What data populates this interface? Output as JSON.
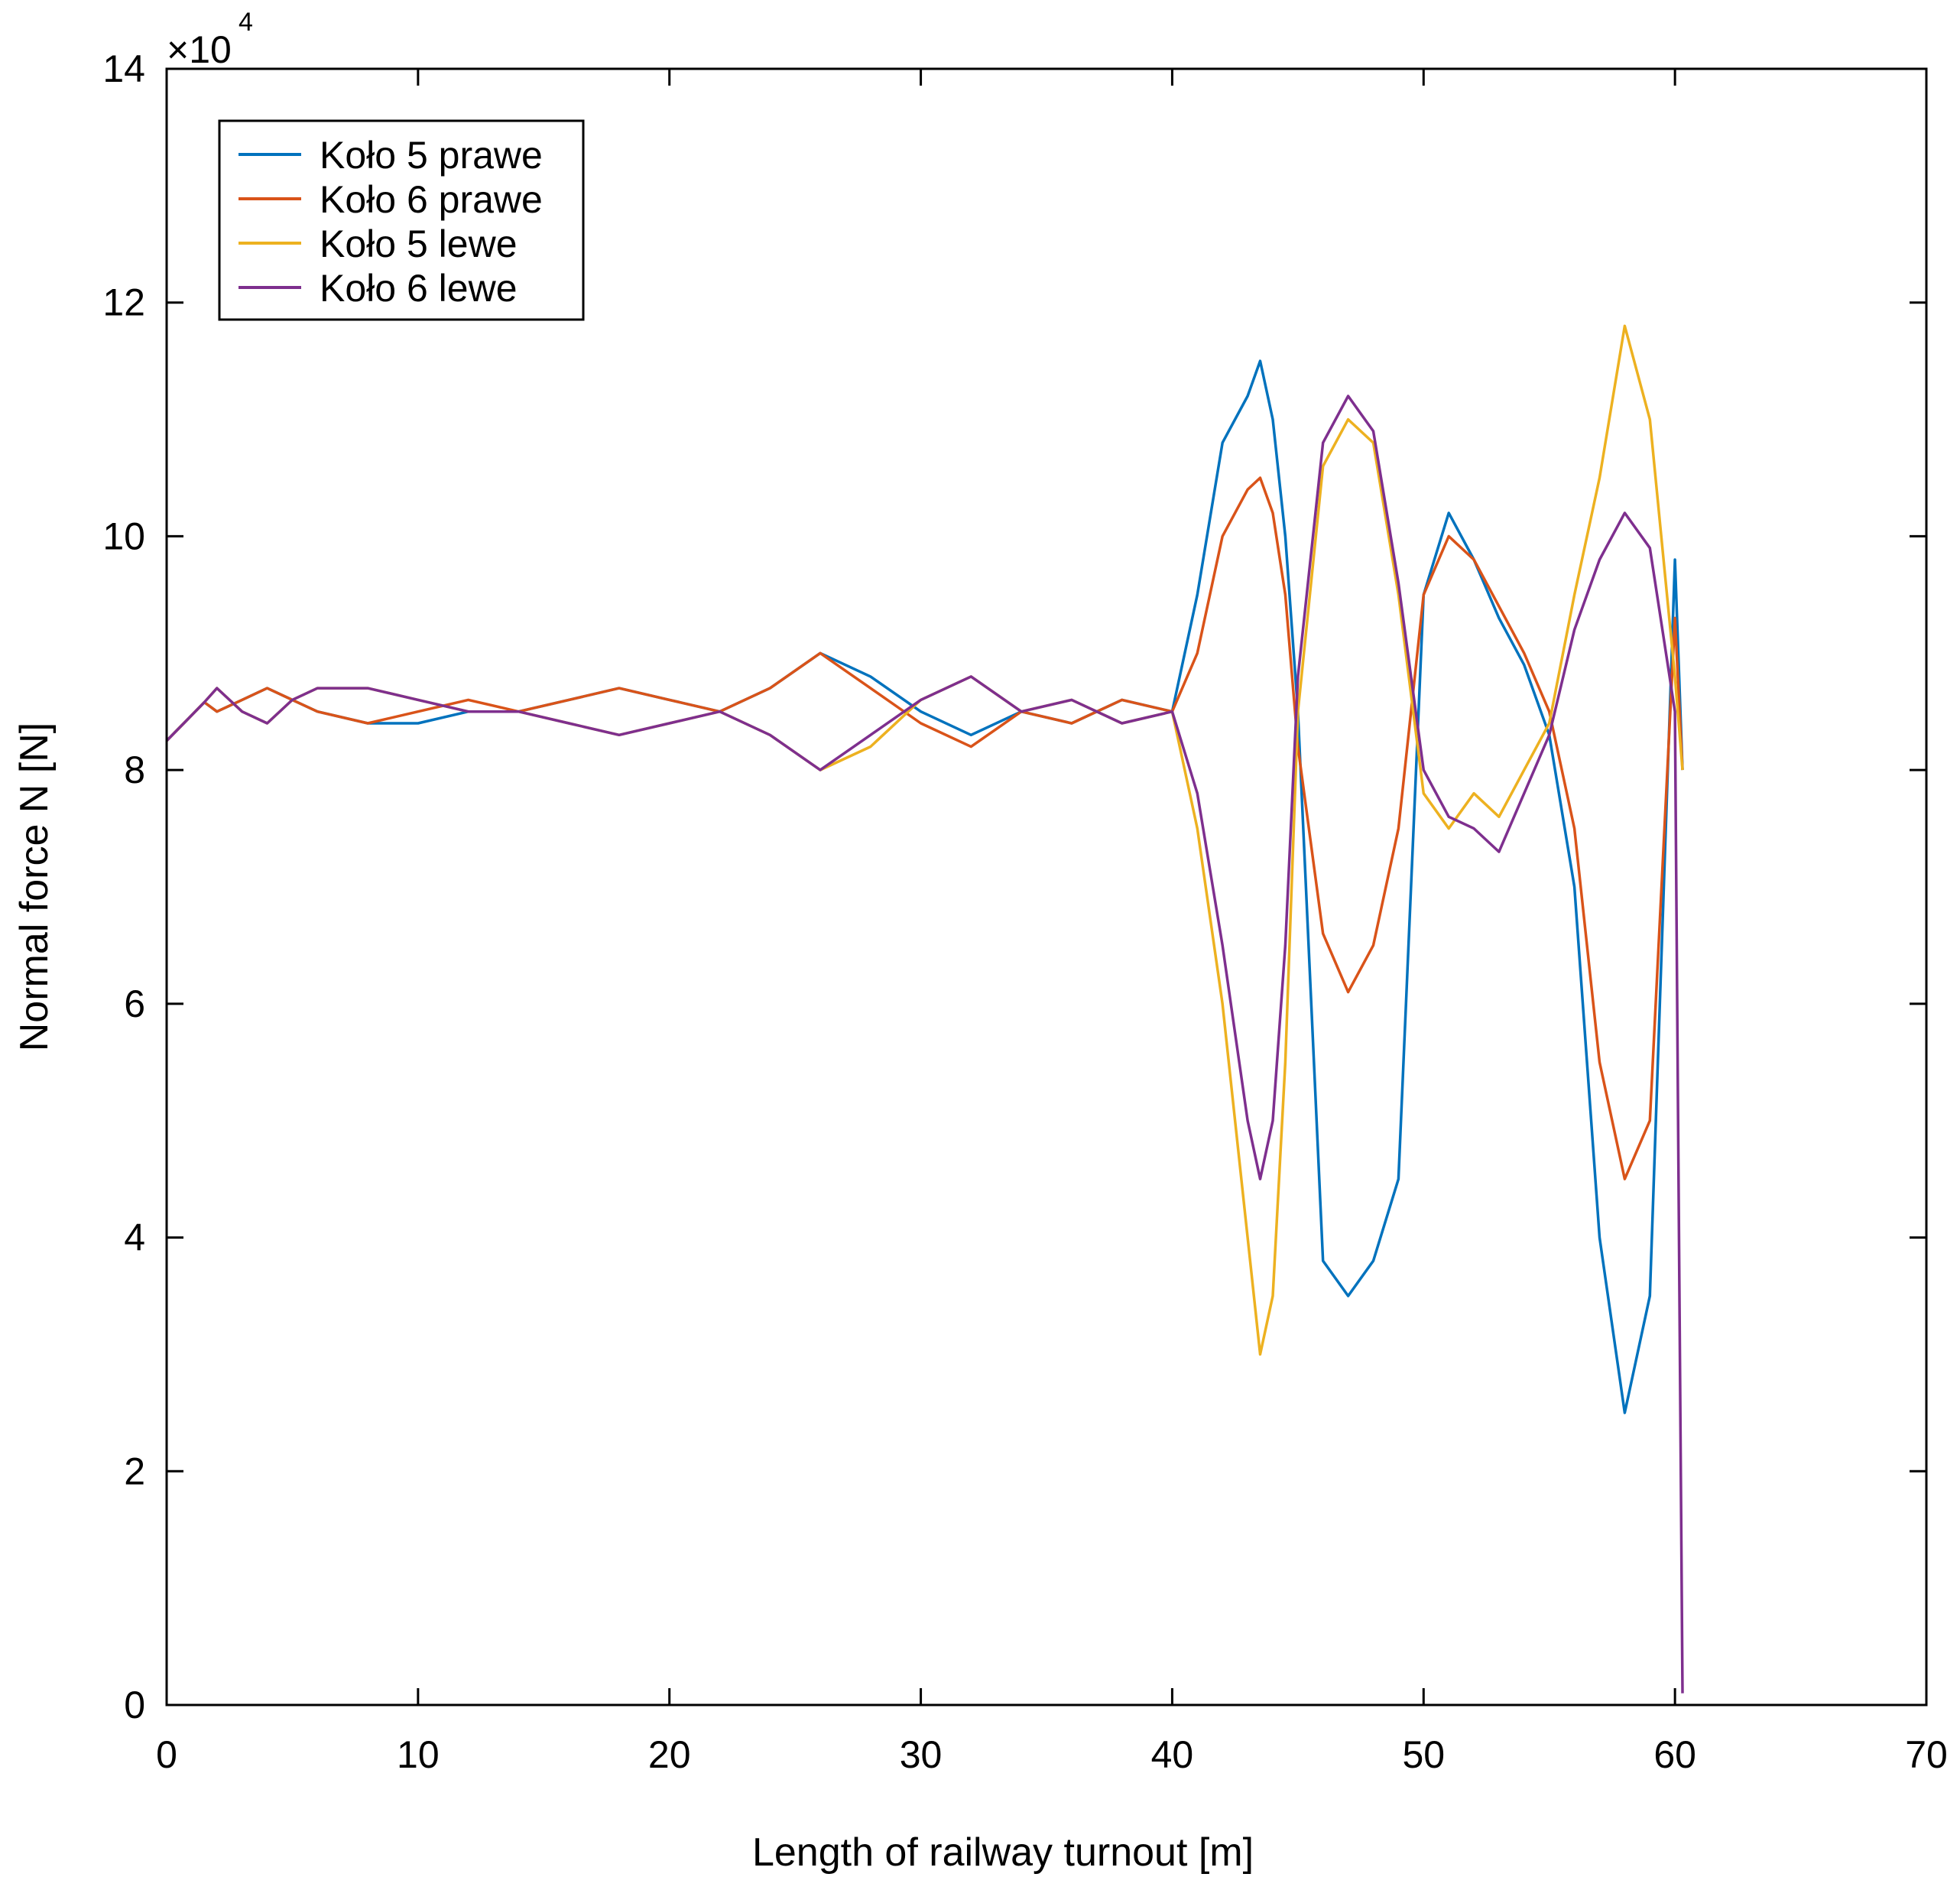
{
  "chart_data": {
    "type": "line",
    "title": "",
    "xlabel": "Length of railway turnout [m]",
    "ylabel": "Normal force N [N]",
    "xlim": [
      0,
      70
    ],
    "ylim": [
      0,
      14
    ],
    "x_ticks": [
      0,
      10,
      20,
      30,
      40,
      50,
      60,
      70
    ],
    "y_ticks": [
      0,
      2,
      4,
      6,
      8,
      10,
      12,
      14
    ],
    "x_tick_labels": [
      "0",
      "10",
      "20",
      "30",
      "40",
      "50",
      "60",
      "70"
    ],
    "y_tick_labels": [
      "0",
      "2",
      "4",
      "6",
      "8",
      "10",
      "12",
      "14"
    ],
    "y_multiplier": "×10",
    "y_multiplier_exponent": "4",
    "grid": false,
    "legend_position": "top-left",
    "series": [
      {
        "name": "Koło 5 prawe",
        "color": "#0072BD",
        "x": [
          0,
          1.5,
          2,
          3,
          4,
          5,
          6,
          8,
          10,
          12,
          14,
          16,
          18,
          20,
          22,
          24,
          26,
          28,
          30,
          32,
          34,
          36,
          38,
          40,
          41,
          42,
          43,
          43.5,
          44,
          44.5,
          45,
          46,
          47,
          48,
          49,
          50,
          51,
          52,
          53,
          54,
          55,
          56,
          57,
          58,
          59,
          60,
          60.3
        ],
        "y": [
          8.25,
          8.58,
          8.5,
          8.6,
          8.7,
          8.6,
          8.5,
          8.4,
          8.4,
          8.5,
          8.5,
          8.6,
          8.7,
          8.6,
          8.5,
          8.7,
          9.0,
          8.8,
          8.5,
          8.3,
          8.5,
          8.4,
          8.6,
          8.5,
          9.5,
          10.8,
          11.2,
          11.5,
          11.0,
          10.0,
          8.5,
          3.8,
          3.5,
          3.8,
          4.5,
          9.5,
          10.2,
          9.8,
          9.3,
          8.9,
          8.3,
          7.0,
          4.0,
          2.5,
          3.5,
          9.8,
          8.0
        ]
      },
      {
        "name": "Koło 6 prawe",
        "color": "#D95319",
        "x": [
          0,
          1.5,
          2,
          3,
          4,
          5,
          6,
          8,
          10,
          12,
          14,
          16,
          18,
          20,
          22,
          24,
          26,
          28,
          30,
          32,
          34,
          36,
          38,
          40,
          41,
          42,
          43,
          43.5,
          44,
          44.5,
          45,
          46,
          47,
          48,
          49,
          50,
          51,
          52,
          53,
          54,
          55,
          56,
          57,
          58,
          59,
          60,
          60.3
        ],
        "y": [
          8.25,
          8.58,
          8.5,
          8.6,
          8.7,
          8.6,
          8.5,
          8.4,
          8.5,
          8.6,
          8.5,
          8.6,
          8.7,
          8.6,
          8.5,
          8.7,
          9.0,
          8.7,
          8.4,
          8.2,
          8.5,
          8.4,
          8.6,
          8.5,
          9.0,
          10.0,
          10.4,
          10.5,
          10.2,
          9.5,
          8.2,
          6.6,
          6.1,
          6.5,
          7.5,
          9.5,
          10.0,
          9.8,
          9.4,
          9.0,
          8.5,
          7.5,
          5.5,
          4.5,
          5.0,
          9.3,
          8.0
        ]
      },
      {
        "name": "Koło 5 lewe",
        "color": "#EDB120",
        "x": [
          0,
          1.5,
          2,
          3,
          4,
          5,
          6,
          8,
          10,
          12,
          14,
          16,
          18,
          20,
          22,
          24,
          26,
          28,
          30,
          32,
          34,
          36,
          38,
          40,
          41,
          42,
          43,
          43.5,
          44,
          44.5,
          45,
          46,
          47,
          48,
          49,
          50,
          51,
          52,
          53,
          54,
          55,
          56,
          57,
          58,
          59,
          60,
          60.3
        ],
        "y": [
          8.25,
          8.58,
          8.7,
          8.5,
          8.4,
          8.6,
          8.7,
          8.7,
          8.6,
          8.5,
          8.5,
          8.4,
          8.3,
          8.4,
          8.5,
          8.3,
          8.0,
          8.2,
          8.6,
          8.8,
          8.5,
          8.6,
          8.4,
          8.5,
          7.5,
          6.0,
          4.0,
          3.0,
          3.5,
          5.5,
          8.5,
          10.6,
          11.0,
          10.8,
          9.5,
          7.8,
          7.5,
          7.8,
          7.6,
          8.0,
          8.4,
          9.5,
          10.5,
          11.8,
          11.0,
          8.8,
          8.0
        ]
      },
      {
        "name": "Koło 6 lewe",
        "color": "#7E2F8E",
        "x": [
          0,
          1.5,
          2,
          3,
          4,
          5,
          6,
          8,
          10,
          12,
          14,
          16,
          18,
          20,
          22,
          24,
          26,
          28,
          30,
          32,
          34,
          36,
          38,
          40,
          41,
          42,
          43,
          43.5,
          44,
          44.5,
          45,
          46,
          47,
          48,
          49,
          50,
          51,
          52,
          53,
          54,
          55,
          56,
          57,
          58,
          59,
          60,
          60.3
        ],
        "y": [
          8.25,
          8.58,
          8.7,
          8.5,
          8.4,
          8.6,
          8.7,
          8.7,
          8.6,
          8.5,
          8.5,
          8.4,
          8.3,
          8.4,
          8.5,
          8.3,
          8.0,
          8.3,
          8.6,
          8.8,
          8.5,
          8.6,
          8.4,
          8.5,
          7.8,
          6.5,
          5.0,
          4.5,
          5.0,
          6.5,
          8.8,
          10.8,
          11.2,
          10.9,
          9.6,
          8.0,
          7.6,
          7.5,
          7.3,
          7.8,
          8.3,
          9.2,
          9.8,
          10.2,
          9.9,
          8.5,
          0.1
        ]
      }
    ]
  }
}
